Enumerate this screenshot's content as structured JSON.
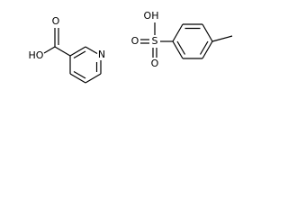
{
  "molecules": [
    {
      "atoms": [
        "O",
        "HO",
        "N"
      ]
    },
    {
      "atoms": [
        "OH",
        "S",
        "O",
        "O"
      ]
    }
  ]
}
